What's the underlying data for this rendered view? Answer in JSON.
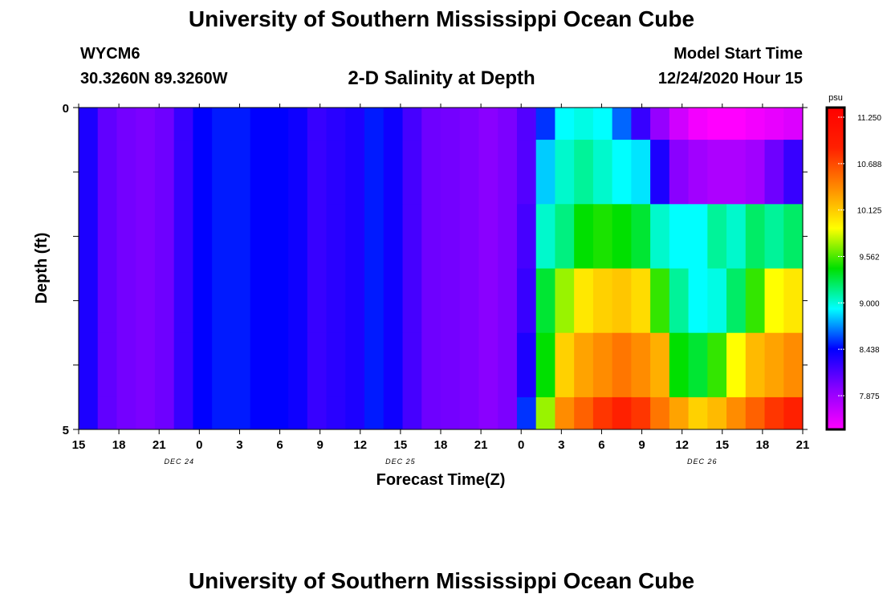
{
  "header": {
    "title": "University of Southern Mississippi Ocean Cube",
    "station_id": "WYCM6",
    "coordinates": "30.3260N 89.3260W",
    "chart_title": "2-D Salinity at Depth",
    "model_start_label": "Model Start Time",
    "model_start_time": "12/24/2020 Hour 15"
  },
  "footer": {
    "title": "University of Southern Mississippi Ocean Cube"
  },
  "chart_data": {
    "type": "heatmap",
    "title": "2-D Salinity at Depth",
    "xlabel": "Forecast Time(Z)",
    "ylabel": "Depth (ft)",
    "x_tick_labels": [
      "15",
      "18",
      "21",
      "0",
      "3",
      "6",
      "9",
      "12",
      "15",
      "18",
      "21",
      "0",
      "3",
      "6",
      "9",
      "12",
      "15",
      "18",
      "21"
    ],
    "date_labels": [
      {
        "label": "DEC 24",
        "tick_index": 2.5
      },
      {
        "label": "DEC 25",
        "tick_index": 8
      },
      {
        "label": "DEC 26",
        "tick_index": 15.5
      }
    ],
    "y_tick_labels": [
      "0",
      "5"
    ],
    "y_range": [
      0,
      5
    ],
    "colorbar": {
      "unit": "psu",
      "labels": [
        "11.250",
        "10.688",
        "10.125",
        "9.562",
        "9.000",
        "8.438",
        "7.875"
      ],
      "min": 7.5,
      "max": 11.5
    },
    "depth_bands": 5,
    "salinity_by_depth": [
      [
        8.4,
        8.15,
        8.08,
        8.05,
        8.1,
        8.3,
        8.5,
        8.55,
        8.55,
        8.5,
        8.5,
        8.45,
        8.3,
        8.35,
        8.4,
        8.55,
        8.45,
        8.25,
        8.1,
        8.08,
        8.05,
        8.0,
        8.05,
        8.2,
        8.6,
        9.0,
        9.05,
        9.0,
        8.7,
        8.3,
        7.95,
        7.7,
        7.55,
        7.5,
        7.5,
        7.55,
        7.6,
        7.65
      ],
      [
        8.4,
        8.15,
        8.08,
        8.05,
        8.1,
        8.3,
        8.5,
        8.55,
        8.55,
        8.5,
        8.5,
        8.45,
        8.3,
        8.35,
        8.4,
        8.55,
        8.45,
        8.25,
        8.1,
        8.08,
        8.05,
        8.0,
        8.05,
        8.2,
        8.9,
        9.1,
        9.2,
        9.1,
        9.0,
        8.95,
        8.4,
        8.0,
        7.9,
        7.85,
        7.85,
        7.9,
        8.1,
        8.3
      ],
      [
        8.4,
        8.15,
        8.08,
        8.05,
        8.1,
        8.3,
        8.5,
        8.55,
        8.55,
        8.5,
        8.5,
        8.45,
        8.3,
        8.35,
        8.4,
        8.55,
        8.45,
        8.25,
        8.1,
        8.08,
        8.05,
        8.0,
        8.05,
        8.25,
        9.1,
        9.25,
        9.5,
        9.55,
        9.5,
        9.4,
        9.1,
        9.0,
        9.0,
        9.2,
        9.1,
        9.3,
        9.2,
        9.3
      ],
      [
        8.4,
        8.15,
        8.08,
        8.05,
        8.1,
        8.3,
        8.5,
        8.55,
        8.55,
        8.5,
        8.5,
        8.45,
        8.3,
        8.35,
        8.4,
        8.55,
        8.45,
        8.25,
        8.1,
        8.08,
        8.05,
        8.0,
        8.05,
        8.3,
        9.4,
        9.8,
        10.1,
        10.2,
        10.25,
        10.15,
        9.6,
        9.2,
        9.0,
        9.05,
        9.3,
        9.6,
        10.0,
        10.1
      ],
      [
        8.4,
        8.15,
        8.08,
        8.05,
        8.1,
        8.3,
        8.5,
        8.55,
        8.55,
        8.5,
        8.5,
        8.45,
        8.3,
        8.35,
        8.4,
        8.55,
        8.45,
        8.25,
        8.1,
        8.08,
        8.05,
        8.0,
        8.05,
        8.4,
        9.5,
        10.2,
        10.4,
        10.5,
        10.6,
        10.5,
        10.35,
        9.5,
        9.4,
        9.6,
        10.0,
        10.3,
        10.4,
        10.5
      ],
      [
        8.4,
        8.15,
        8.08,
        8.05,
        8.1,
        8.3,
        8.5,
        8.55,
        8.55,
        8.5,
        8.5,
        8.45,
        8.3,
        8.35,
        8.4,
        8.55,
        8.45,
        8.25,
        8.1,
        8.08,
        8.05,
        8.0,
        8.05,
        8.6,
        9.8,
        10.5,
        10.7,
        10.9,
        11.0,
        10.9,
        10.6,
        10.4,
        10.2,
        10.3,
        10.5,
        10.7,
        10.9,
        11.0
      ]
    ]
  }
}
